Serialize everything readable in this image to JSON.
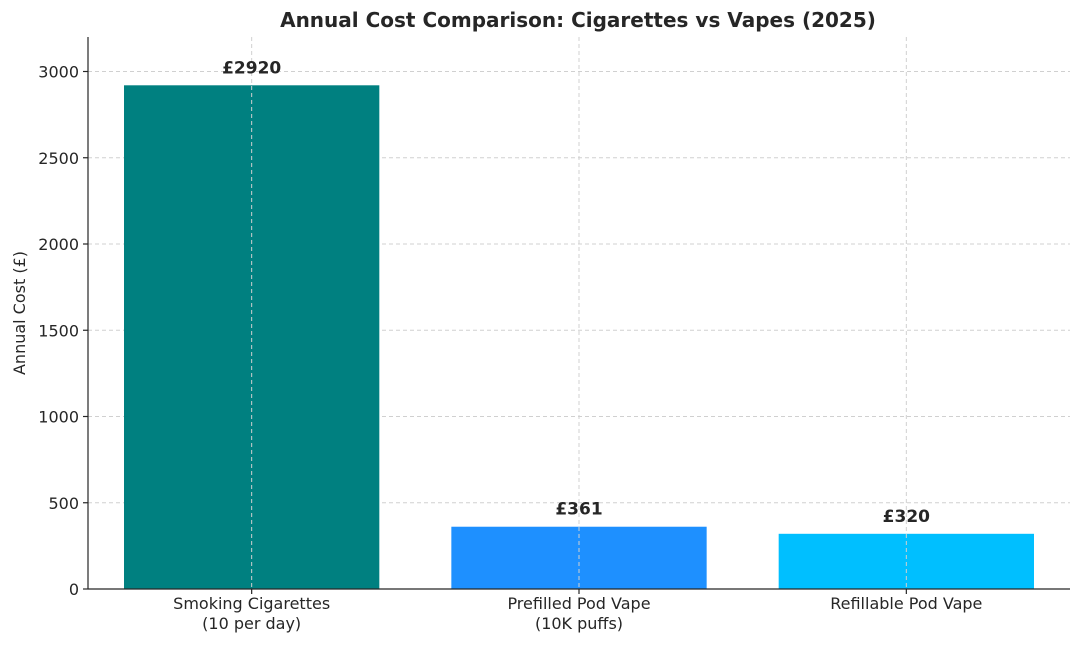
{
  "chart_data": {
    "type": "bar",
    "title": "Annual Cost Comparison: Cigarettes vs Vapes (2025)",
    "xlabel": "",
    "ylabel": "Annual Cost (£)",
    "ylim": [
      0,
      3200
    ],
    "yticks": [
      0,
      500,
      1000,
      1500,
      2000,
      2500,
      3000
    ],
    "grid": true,
    "categories": [
      [
        "Smoking Cigarettes",
        "(10 per day)"
      ],
      [
        "Prefilled Pod Vape",
        "(10K puffs)"
      ],
      [
        "Refillable Pod Vape"
      ]
    ],
    "values": [
      2920,
      361,
      320
    ],
    "data_labels": [
      "£2920",
      "£361",
      "£320"
    ],
    "colors": [
      "#008080",
      "#1e90ff",
      "#00bfff"
    ]
  }
}
